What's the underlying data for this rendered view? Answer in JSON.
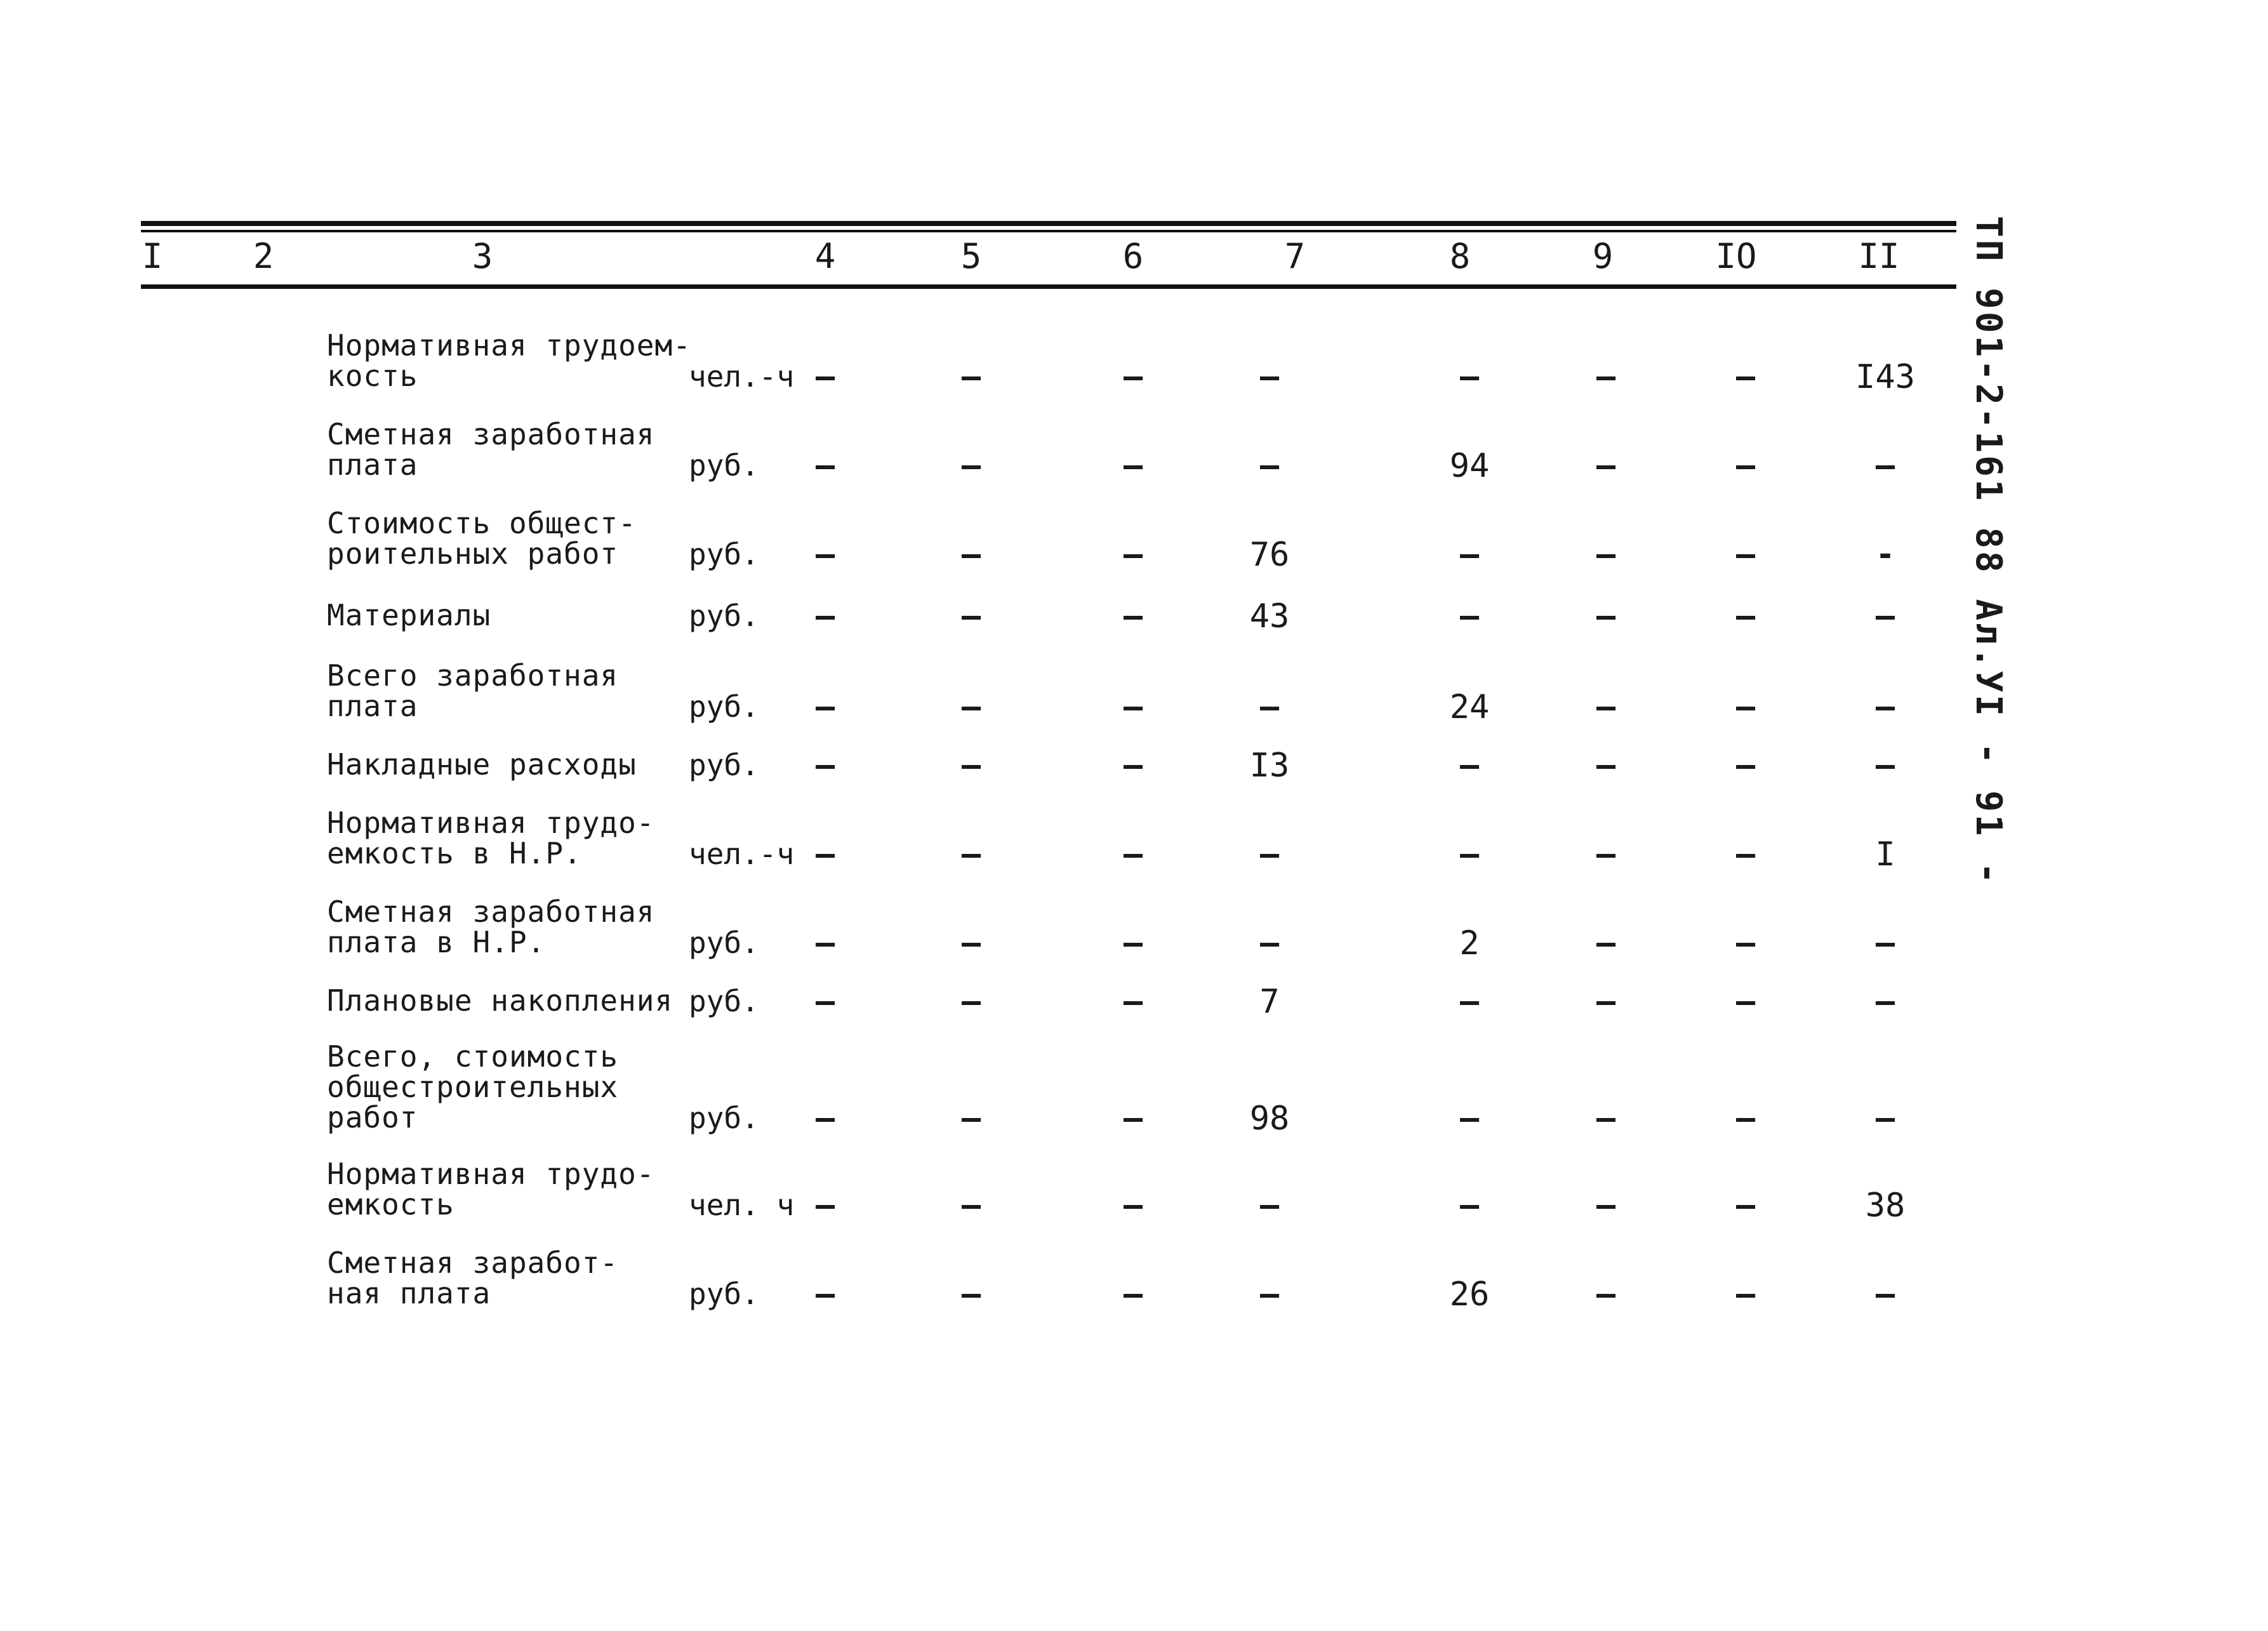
{
  "header": {
    "columns": [
      "I",
      "2",
      "3",
      "4",
      "5",
      "6",
      "7",
      "8",
      "9",
      "IO",
      "II"
    ]
  },
  "side_caption": "ТП 901-2-161 88   Ал.УI  - 91 -",
  "rows": [
    {
      "label": "Нормативная трудоем-\nкость",
      "unit": "чел.-ч",
      "values": [
        "–",
        "–",
        "–",
        "–",
        "–",
        "–",
        "–",
        "I43"
      ]
    },
    {
      "label": "Сметная заработная\nплата",
      "unit": "руб.",
      "values": [
        "–",
        "–",
        "–",
        "–",
        "94",
        "–",
        "–",
        "–"
      ]
    },
    {
      "label": "Стоимость общест-\nроительных работ",
      "unit": "руб.",
      "values": [
        "–",
        "–",
        "–",
        "76",
        "–",
        "–",
        "–",
        "-"
      ]
    },
    {
      "label": "Материалы",
      "unit": "руб.",
      "values": [
        "–",
        "–",
        "–",
        "43",
        "–",
        "–",
        "–",
        "–"
      ]
    },
    {
      "label": "Всего заработная\nплата",
      "unit": "руб.",
      "values": [
        "–",
        "–",
        "–",
        "–",
        "24",
        "–",
        "–",
        "–"
      ]
    },
    {
      "label": "Накладные расходы",
      "unit": "руб.",
      "values": [
        "–",
        "–",
        "–",
        "I3",
        "–",
        "–",
        "–",
        "–"
      ]
    },
    {
      "label": "Нормативная трудо-\nемкость в Н.Р.",
      "unit": "чел.-ч",
      "values": [
        "–",
        "–",
        "–",
        "–",
        "–",
        "–",
        "–",
        "I"
      ]
    },
    {
      "label": "Сметная заработная\nплата в Н.Р.",
      "unit": "руб.",
      "values": [
        "–",
        "–",
        "–",
        "–",
        "2",
        "–",
        "–",
        "–"
      ]
    },
    {
      "label": "Плановые накопления",
      "unit": "руб.",
      "values": [
        "–",
        "–",
        "–",
        "7",
        "–",
        "–",
        "–",
        "–"
      ]
    },
    {
      "label": "Всего, стоимость\nобщестроительных\nработ",
      "unit": "руб.",
      "values": [
        "–",
        "–",
        "–",
        "98",
        "–",
        "–",
        "–",
        "–"
      ]
    },
    {
      "label": "Нормативная трудо-\nемкость",
      "unit": "чел. ч",
      "values": [
        "–",
        "–",
        "–",
        "–",
        "–",
        "–",
        "–",
        "38"
      ]
    },
    {
      "label": "Сметная заработ-\nная плата",
      "unit": "руб.",
      "values": [
        "–",
        "–",
        "–",
        "–",
        "26",
        "–",
        "–",
        "–"
      ]
    }
  ]
}
